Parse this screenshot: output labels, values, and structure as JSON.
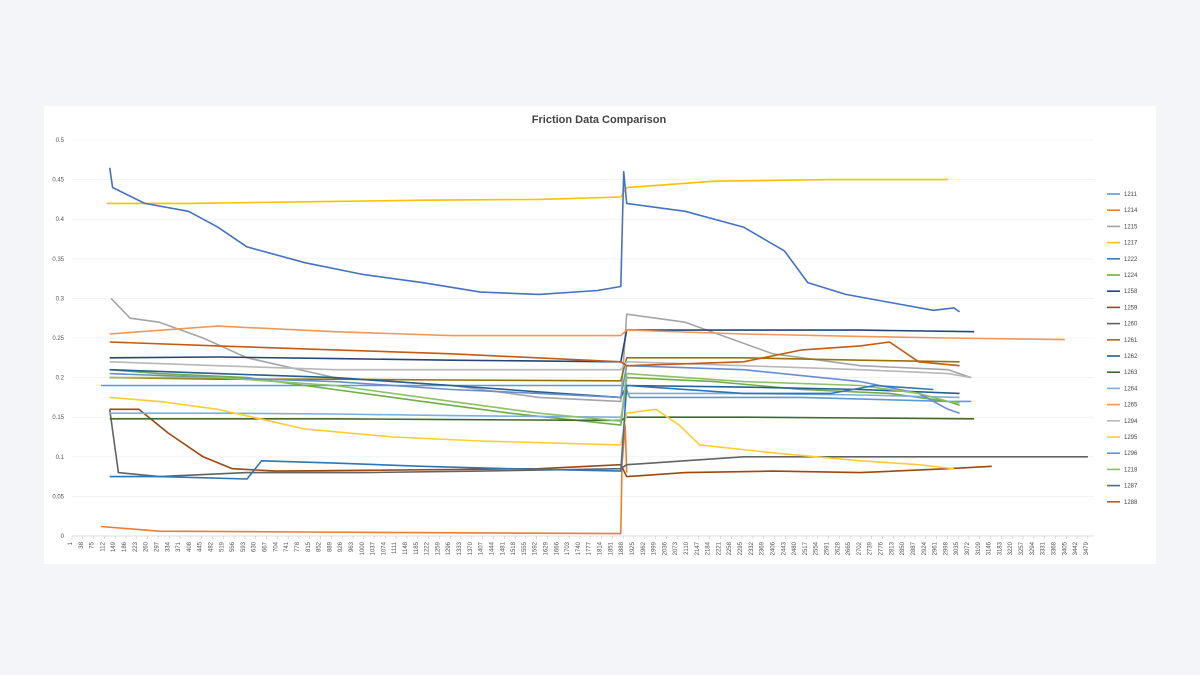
{
  "chart_data": {
    "type": "line",
    "title": "Friction Data Comparison",
    "xlabel": "",
    "ylabel": "",
    "ylim": [
      0,
      0.5
    ],
    "xlim": [
      1,
      3500
    ],
    "y_ticks": [
      "0",
      "0.05",
      "0.1",
      "0.15",
      "0.2",
      "0.25",
      "0.3",
      "0.35",
      "0.4",
      "0.45",
      "0.5"
    ],
    "x_ticks": [
      "1",
      "38",
      "75",
      "112",
      "149",
      "186",
      "223",
      "260",
      "297",
      "334",
      "371",
      "408",
      "445",
      "482",
      "519",
      "556",
      "593",
      "630",
      "667",
      "704",
      "741",
      "778",
      "815",
      "852",
      "889",
      "926",
      "963",
      "1000",
      "1037",
      "1074",
      "1111",
      "1148",
      "1185",
      "1222",
      "1259",
      "1296",
      "1333",
      "1370",
      "1407",
      "1444",
      "1481",
      "1518",
      "1555",
      "1592",
      "1629",
      "1666",
      "1703",
      "1740",
      "1777",
      "1814",
      "1851",
      "1888",
      "1925",
      "1962",
      "1999",
      "2036",
      "2073",
      "2110",
      "2147",
      "2184",
      "2221",
      "2258",
      "2295",
      "2332",
      "2369",
      "2406",
      "2443",
      "2480",
      "2517",
      "2554",
      "2591",
      "2628",
      "2665",
      "2702",
      "2739",
      "2776",
      "2813",
      "2850",
      "2887",
      "2924",
      "2961",
      "2998",
      "3035",
      "3072",
      "3109",
      "3146",
      "3183",
      "3220",
      "3257",
      "3294",
      "3331",
      "3368",
      "3405",
      "3442",
      "3479"
    ],
    "legend_position": "right",
    "grid": true,
    "series": [
      {
        "name": "1211",
        "color": "#5b9bd5",
        "points": [
          [
            100,
            0.19
          ],
          [
            500,
            0.19
          ],
          [
            1000,
            0.19
          ],
          [
            1500,
            0.19
          ],
          [
            1895,
            0.19
          ],
          [
            1910,
            0.175
          ],
          [
            2500,
            0.175
          ],
          [
            3000,
            0.17
          ],
          [
            3080,
            0.17
          ]
        ]
      },
      {
        "name": "1214",
        "color": "#ed7d31",
        "points": [
          [
            100,
            0.012
          ],
          [
            300,
            0.006
          ],
          [
            800,
            0.005
          ],
          [
            1300,
            0.004
          ],
          [
            1880,
            0.003
          ],
          [
            1884,
            0.09
          ],
          [
            1895,
            0.14
          ],
          [
            1900,
            0.08
          ]
        ]
      },
      {
        "name": "1215",
        "color": "#a5a5a5",
        "points": [
          [
            135,
            0.3
          ],
          [
            200,
            0.275
          ],
          [
            300,
            0.27
          ],
          [
            450,
            0.25
          ],
          [
            600,
            0.225
          ],
          [
            900,
            0.2
          ],
          [
            1300,
            0.19
          ],
          [
            1600,
            0.175
          ],
          [
            1880,
            0.17
          ],
          [
            1900,
            0.28
          ],
          [
            2100,
            0.27
          ],
          [
            2400,
            0.23
          ],
          [
            2700,
            0.215
          ],
          [
            3000,
            0.21
          ],
          [
            3080,
            0.2
          ]
        ]
      },
      {
        "name": "1217",
        "color": "#ffc000",
        "points": [
          [
            120,
            0.42
          ],
          [
            400,
            0.42
          ],
          [
            800,
            0.422
          ],
          [
            1200,
            0.424
          ],
          [
            1600,
            0.425
          ],
          [
            1880,
            0.428
          ],
          [
            1900,
            0.44
          ],
          [
            2200,
            0.448
          ],
          [
            2600,
            0.45
          ],
          [
            3000,
            0.45
          ]
        ]
      },
      {
        "name": "1222",
        "color": "#4472c4",
        "points": [
          [
            130,
            0.465
          ],
          [
            140,
            0.44
          ],
          [
            250,
            0.42
          ],
          [
            400,
            0.41
          ],
          [
            500,
            0.39
          ],
          [
            600,
            0.365
          ],
          [
            800,
            0.345
          ],
          [
            1000,
            0.33
          ],
          [
            1200,
            0.32
          ],
          [
            1400,
            0.308
          ],
          [
            1600,
            0.305
          ],
          [
            1800,
            0.31
          ],
          [
            1880,
            0.315
          ],
          [
            1890,
            0.46
          ],
          [
            1900,
            0.42
          ],
          [
            2100,
            0.41
          ],
          [
            2300,
            0.39
          ],
          [
            2440,
            0.36
          ],
          [
            2520,
            0.32
          ],
          [
            2650,
            0.305
          ],
          [
            2800,
            0.295
          ],
          [
            2950,
            0.285
          ],
          [
            3020,
            0.288
          ],
          [
            3040,
            0.283
          ]
        ]
      },
      {
        "name": "1224",
        "color": "#70ad47",
        "points": [
          [
            130,
            0.21
          ],
          [
            300,
            0.205
          ],
          [
            600,
            0.2
          ],
          [
            900,
            0.185
          ],
          [
            1200,
            0.17
          ],
          [
            1500,
            0.155
          ],
          [
            1880,
            0.14
          ],
          [
            1900,
            0.2
          ],
          [
            2200,
            0.195
          ],
          [
            2500,
            0.185
          ],
          [
            2800,
            0.18
          ],
          [
            3000,
            0.17
          ],
          [
            3040,
            0.165
          ]
        ]
      },
      {
        "name": "1258",
        "color": "#264478",
        "points": [
          [
            130,
            0.225
          ],
          [
            500,
            0.226
          ],
          [
            900,
            0.224
          ],
          [
            1300,
            0.222
          ],
          [
            1880,
            0.22
          ],
          [
            1900,
            0.26
          ],
          [
            2300,
            0.26
          ],
          [
            2700,
            0.26
          ],
          [
            3090,
            0.258
          ]
        ]
      },
      {
        "name": "1259",
        "color": "#9e480e",
        "points": [
          [
            130,
            0.16
          ],
          [
            230,
            0.16
          ],
          [
            330,
            0.13
          ],
          [
            450,
            0.1
          ],
          [
            550,
            0.085
          ],
          [
            700,
            0.082
          ],
          [
            1000,
            0.083
          ],
          [
            1300,
            0.084
          ],
          [
            1600,
            0.085
          ],
          [
            1880,
            0.09
          ],
          [
            1900,
            0.075
          ],
          [
            2100,
            0.08
          ],
          [
            2400,
            0.082
          ],
          [
            2700,
            0.08
          ],
          [
            3000,
            0.085
          ],
          [
            3150,
            0.088
          ]
        ]
      },
      {
        "name": "1260",
        "color": "#636363",
        "points": [
          [
            130,
            0.16
          ],
          [
            160,
            0.08
          ],
          [
            300,
            0.075
          ],
          [
            600,
            0.08
          ],
          [
            1000,
            0.08
          ],
          [
            1400,
            0.082
          ],
          [
            1880,
            0.085
          ],
          [
            1900,
            0.09
          ],
          [
            2300,
            0.1
          ],
          [
            2700,
            0.1
          ],
          [
            3100,
            0.1
          ],
          [
            3479,
            0.1
          ]
        ]
      },
      {
        "name": "1261",
        "color": "#997300",
        "points": [
          [
            130,
            0.2
          ],
          [
            500,
            0.198
          ],
          [
            900,
            0.198
          ],
          [
            1300,
            0.197
          ],
          [
            1880,
            0.196
          ],
          [
            1900,
            0.225
          ],
          [
            2300,
            0.225
          ],
          [
            2700,
            0.222
          ],
          [
            3040,
            0.22
          ]
        ]
      },
      {
        "name": "1262",
        "color": "#255e91",
        "points": [
          [
            130,
            0.21
          ],
          [
            500,
            0.205
          ],
          [
            900,
            0.2
          ],
          [
            1300,
            0.19
          ],
          [
            1600,
            0.182
          ],
          [
            1880,
            0.175
          ],
          [
            1900,
            0.19
          ],
          [
            2300,
            0.188
          ],
          [
            2700,
            0.185
          ],
          [
            3040,
            0.18
          ]
        ]
      },
      {
        "name": "1263",
        "color": "#43682b",
        "points": [
          [
            130,
            0.148
          ],
          [
            500,
            0.148
          ],
          [
            900,
            0.148
          ],
          [
            1300,
            0.147
          ],
          [
            1880,
            0.146
          ],
          [
            1900,
            0.15
          ],
          [
            2300,
            0.15
          ],
          [
            2700,
            0.149
          ],
          [
            3090,
            0.148
          ]
        ]
      },
      {
        "name": "1264",
        "color": "#7cafdd",
        "points": [
          [
            130,
            0.155
          ],
          [
            500,
            0.155
          ],
          [
            900,
            0.154
          ],
          [
            1300,
            0.152
          ],
          [
            1880,
            0.15
          ],
          [
            1900,
            0.18
          ],
          [
            2300,
            0.18
          ],
          [
            2700,
            0.178
          ],
          [
            3040,
            0.175
          ]
        ]
      },
      {
        "name": "1265",
        "color": "#f1975a",
        "points": [
          [
            130,
            0.255
          ],
          [
            500,
            0.265
          ],
          [
            900,
            0.258
          ],
          [
            1300,
            0.253
          ],
          [
            1880,
            0.253
          ],
          [
            1900,
            0.26
          ],
          [
            2300,
            0.255
          ],
          [
            2700,
            0.252
          ],
          [
            3000,
            0.25
          ],
          [
            3400,
            0.248
          ]
        ]
      },
      {
        "name": "1294",
        "color": "#b7b7b7",
        "points": [
          [
            130,
            0.22
          ],
          [
            500,
            0.215
          ],
          [
            900,
            0.21
          ],
          [
            1300,
            0.21
          ],
          [
            1880,
            0.21
          ],
          [
            1900,
            0.22
          ],
          [
            2300,
            0.215
          ],
          [
            2700,
            0.21
          ],
          [
            3000,
            0.205
          ],
          [
            3080,
            0.2
          ]
        ]
      },
      {
        "name": "1295",
        "color": "#ffcd33",
        "points": [
          [
            130,
            0.175
          ],
          [
            300,
            0.17
          ],
          [
            500,
            0.16
          ],
          [
            800,
            0.135
          ],
          [
            1100,
            0.125
          ],
          [
            1400,
            0.12
          ],
          [
            1880,
            0.115
          ],
          [
            1900,
            0.155
          ],
          [
            2000,
            0.16
          ],
          [
            2080,
            0.14
          ],
          [
            2150,
            0.115
          ],
          [
            2400,
            0.105
          ],
          [
            2700,
            0.095
          ],
          [
            2900,
            0.09
          ],
          [
            3020,
            0.085
          ]
        ]
      },
      {
        "name": "1296",
        "color": "#698ed0",
        "points": [
          [
            130,
            0.205
          ],
          [
            500,
            0.2
          ],
          [
            900,
            0.195
          ],
          [
            1300,
            0.185
          ],
          [
            1600,
            0.18
          ],
          [
            1880,
            0.175
          ],
          [
            1900,
            0.215
          ],
          [
            2300,
            0.21
          ],
          [
            2700,
            0.195
          ],
          [
            2900,
            0.18
          ],
          [
            3000,
            0.16
          ],
          [
            3040,
            0.155
          ]
        ]
      },
      {
        "name": "1218",
        "color": "#8cc168",
        "points": [
          [
            130,
            0.2
          ],
          [
            500,
            0.2
          ],
          [
            900,
            0.19
          ],
          [
            1300,
            0.17
          ],
          [
            1600,
            0.155
          ],
          [
            1880,
            0.145
          ],
          [
            1900,
            0.205
          ],
          [
            2300,
            0.195
          ],
          [
            2700,
            0.19
          ],
          [
            2900,
            0.18
          ],
          [
            3000,
            0.17
          ],
          [
            3040,
            0.168
          ]
        ]
      },
      {
        "name": "1287",
        "color": "#2e75b6",
        "points": [
          [
            130,
            0.075
          ],
          [
            300,
            0.075
          ],
          [
            600,
            0.072
          ],
          [
            650,
            0.095
          ],
          [
            900,
            0.092
          ],
          [
            1200,
            0.088
          ],
          [
            1500,
            0.085
          ],
          [
            1880,
            0.082
          ],
          [
            1900,
            0.19
          ],
          [
            2300,
            0.18
          ],
          [
            2600,
            0.18
          ],
          [
            2750,
            0.19
          ],
          [
            2950,
            0.185
          ]
        ]
      },
      {
        "name": "1288",
        "color": "#c55a11",
        "points": [
          [
            130,
            0.245
          ],
          [
            500,
            0.24
          ],
          [
            900,
            0.235
          ],
          [
            1300,
            0.23
          ],
          [
            1880,
            0.22
          ],
          [
            1900,
            0.215
          ],
          [
            2300,
            0.22
          ],
          [
            2500,
            0.235
          ],
          [
            2700,
            0.24
          ],
          [
            2800,
            0.245
          ],
          [
            2900,
            0.22
          ],
          [
            3040,
            0.215
          ]
        ]
      }
    ]
  }
}
